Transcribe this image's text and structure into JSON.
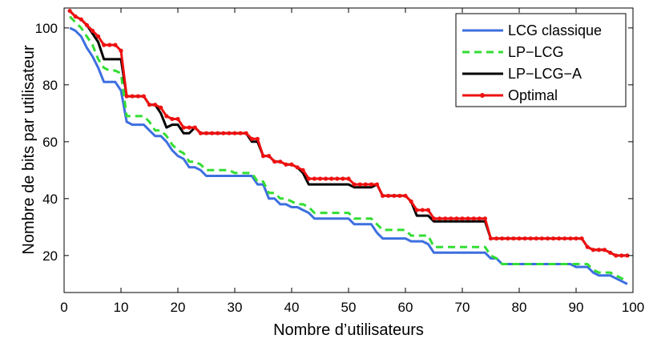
{
  "chart_data": {
    "type": "line",
    "title": "",
    "xlabel": "Nombre d’utilisateurs",
    "ylabel": "Nombre de bits par utilisateur",
    "xlim": [
      0,
      100
    ],
    "ylim": [
      7,
      107
    ],
    "xticks": [
      0,
      10,
      20,
      30,
      40,
      50,
      60,
      70,
      80,
      90,
      100
    ],
    "yticks": [
      20,
      40,
      60,
      80,
      100
    ],
    "grid": false,
    "legend_position": "top-right",
    "x": [
      1,
      2,
      3,
      4,
      5,
      6,
      7,
      8,
      9,
      10,
      11,
      12,
      13,
      14,
      15,
      16,
      17,
      18,
      19,
      20,
      21,
      22,
      23,
      24,
      25,
      26,
      27,
      28,
      29,
      30,
      31,
      32,
      33,
      34,
      35,
      36,
      37,
      38,
      39,
      40,
      41,
      42,
      43,
      44,
      45,
      46,
      47,
      48,
      49,
      50,
      51,
      52,
      53,
      54,
      55,
      56,
      57,
      58,
      59,
      60,
      61,
      62,
      63,
      64,
      65,
      66,
      67,
      68,
      69,
      70,
      71,
      72,
      73,
      74,
      75,
      76,
      77,
      78,
      79,
      80,
      81,
      82,
      83,
      84,
      85,
      86,
      87,
      88,
      89,
      90,
      91,
      92,
      93,
      94,
      95,
      96,
      97,
      98,
      99
    ],
    "series": [
      {
        "name": "LCG classique",
        "color": "#3d6fe0",
        "style": "solid",
        "values": [
          100,
          99,
          97,
          93,
          90,
          86,
          81,
          81,
          81,
          78,
          67,
          66,
          66,
          66,
          64,
          62,
          62,
          60,
          57,
          55,
          54,
          51,
          51,
          50,
          48,
          48,
          48,
          48,
          48,
          48,
          48,
          48,
          48,
          45,
          45,
          40,
          40,
          38,
          38,
          37,
          37,
          36,
          35,
          33,
          33,
          33,
          33,
          33,
          33,
          33,
          31,
          31,
          31,
          31,
          28,
          26,
          26,
          26,
          26,
          26,
          25,
          25,
          25,
          24,
          21,
          21,
          21,
          21,
          21,
          21,
          21,
          21,
          21,
          21,
          19,
          19,
          17,
          17,
          17,
          17,
          17,
          17,
          17,
          17,
          17,
          17,
          17,
          17,
          17,
          16,
          16,
          16,
          14,
          13,
          13,
          13,
          12,
          11,
          10
        ]
      },
      {
        "name": "LP−LCG",
        "color": "#33dd33",
        "style": "dashed",
        "values": [
          104,
          102,
          100,
          97,
          94,
          89,
          86,
          85,
          85,
          84,
          69,
          69,
          69,
          69,
          67,
          64,
          64,
          62,
          59,
          57,
          56,
          53,
          53,
          52,
          50,
          50,
          50,
          50,
          50,
          49,
          49,
          49,
          49,
          46,
          46,
          42,
          42,
          40,
          40,
          39,
          38,
          38,
          37,
          35,
          35,
          35,
          35,
          35,
          35,
          35,
          33,
          33,
          33,
          33,
          31,
          29,
          29,
          29,
          29,
          29,
          27,
          27,
          27,
          27,
          23,
          23,
          23,
          23,
          23,
          23,
          23,
          23,
          23,
          23,
          20,
          19,
          17,
          17,
          17,
          17,
          17,
          17,
          17,
          17,
          17,
          17,
          17,
          17,
          17,
          17,
          17,
          17,
          15,
          14,
          14,
          14,
          13,
          12,
          11
        ]
      },
      {
        "name": "LP−LCG−A",
        "color": "#000000",
        "style": "solid",
        "values": [
          106,
          104,
          103,
          101,
          98,
          95,
          89,
          89,
          89,
          89,
          76,
          76,
          76,
          76,
          73,
          73,
          70,
          65,
          66,
          66,
          63,
          63,
          65,
          63,
          63,
          63,
          63,
          63,
          63,
          63,
          63,
          63,
          60,
          60,
          55,
          55,
          53,
          53,
          52,
          52,
          51,
          49,
          45,
          45,
          45,
          45,
          45,
          45,
          45,
          45,
          44,
          44,
          44,
          44,
          45,
          41,
          41,
          41,
          41,
          41,
          39,
          34,
          34,
          34,
          32,
          32,
          32,
          32,
          32,
          32,
          32,
          32,
          32,
          32,
          26,
          26,
          26,
          26,
          26,
          26,
          26,
          26,
          26,
          26,
          26,
          26,
          26,
          26,
          26,
          26,
          26,
          23,
          22,
          22,
          22,
          21,
          20,
          20,
          20
        ]
      },
      {
        "name": "Optimal",
        "color": "#ee1111",
        "style": "solid-markers",
        "values": [
          106,
          104,
          103,
          101,
          99,
          97,
          94,
          94,
          94,
          92,
          76,
          76,
          76,
          76,
          73,
          73,
          72,
          69,
          68,
          68,
          65,
          65,
          65,
          63,
          63,
          63,
          63,
          63,
          63,
          63,
          63,
          63,
          61,
          61,
          55,
          55,
          53,
          53,
          52,
          52,
          51,
          50,
          47,
          47,
          47,
          47,
          47,
          47,
          47,
          47,
          45,
          45,
          45,
          45,
          45,
          41,
          41,
          41,
          41,
          41,
          39,
          36,
          36,
          36,
          33,
          33,
          33,
          33,
          33,
          33,
          33,
          33,
          33,
          33,
          26,
          26,
          26,
          26,
          26,
          26,
          26,
          26,
          26,
          26,
          26,
          26,
          26,
          26,
          26,
          26,
          26,
          23,
          22,
          22,
          22,
          21,
          20,
          20,
          20
        ]
      }
    ]
  }
}
